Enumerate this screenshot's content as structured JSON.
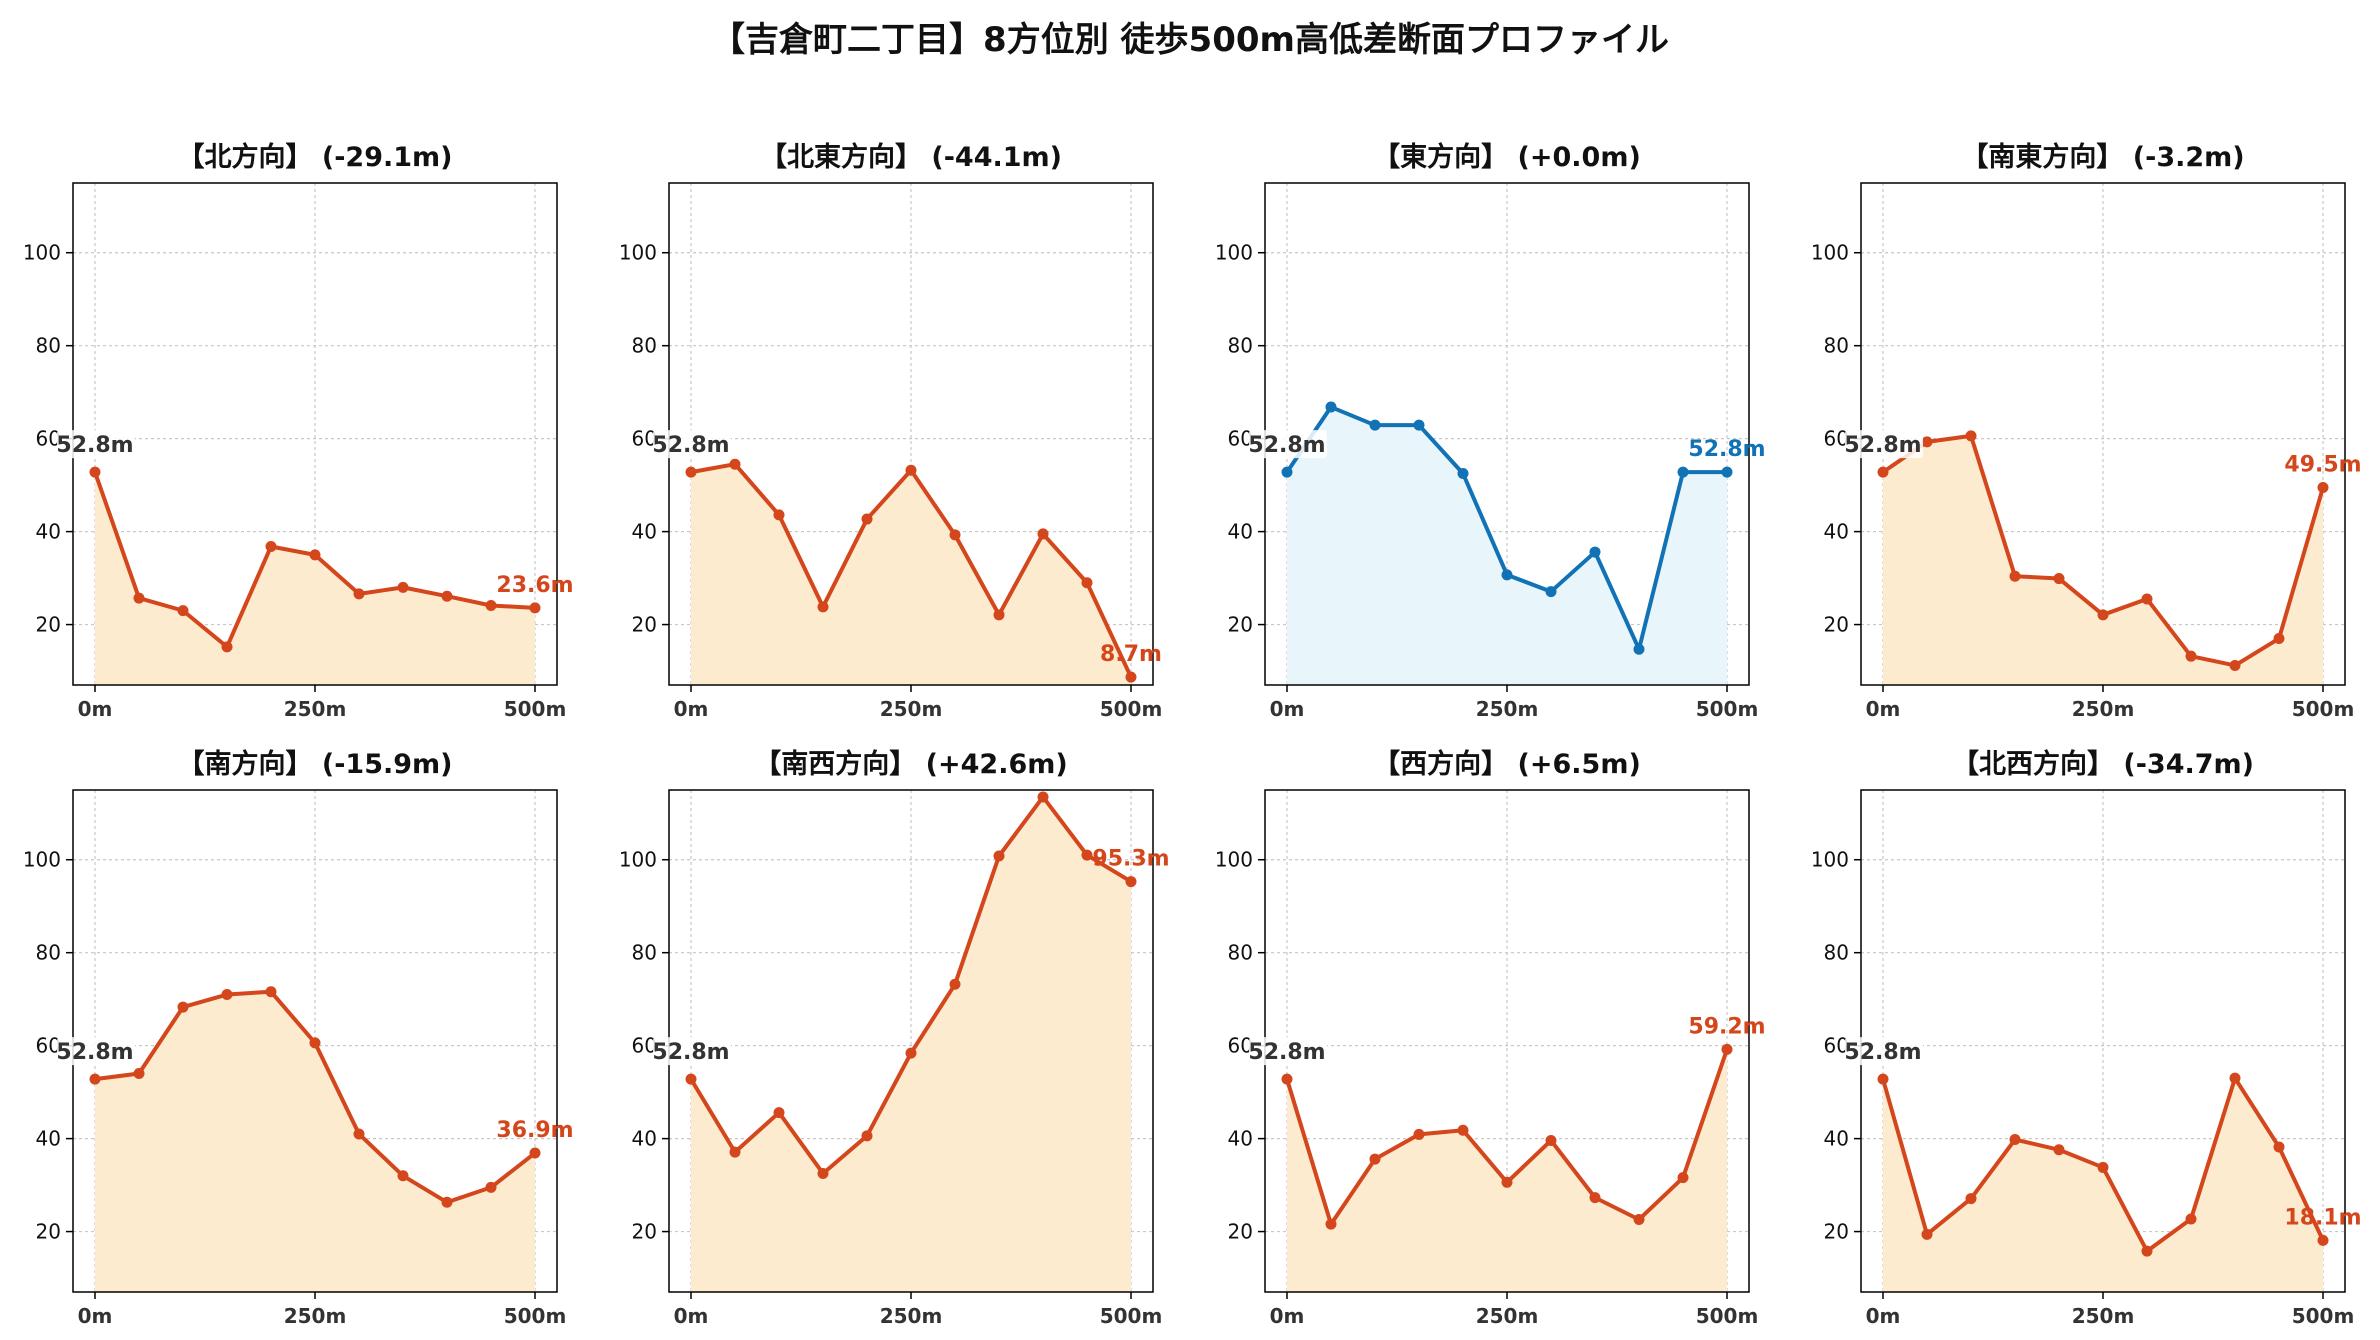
{
  "title": "【吉倉町二丁目】8方位別 徒歩500m高低差断面プロファイル",
  "colors": {
    "descent_line": "#d4461b",
    "descent_fill": "#fdebd0",
    "flat_line": "#1172b5",
    "flat_fill": "#e8f6fb",
    "start_label": "#333333",
    "grid": "#c8c8c8"
  },
  "chart_data": [
    {
      "type": "line",
      "title": "【北方向】 (-29.1m)",
      "x": [
        0,
        50,
        100,
        150,
        200,
        250,
        300,
        350,
        400,
        450,
        500
      ],
      "y": [
        52.8,
        25.7,
        23.0,
        15.2,
        36.8,
        35.0,
        26.6,
        28.0,
        26.1,
        24.1,
        23.6
      ],
      "start_label": "52.8m",
      "end_label": "23.6m",
      "style": "descent",
      "ylim": [
        7,
        115
      ],
      "yticks": [
        20,
        40,
        60,
        80,
        100
      ],
      "xticks": [
        "0m",
        "250m",
        "500m"
      ],
      "xlim": [
        -25,
        525
      ],
      "grid": true
    },
    {
      "type": "line",
      "title": "【北東方向】 (-44.1m)",
      "x": [
        0,
        50,
        100,
        150,
        200,
        250,
        300,
        350,
        400,
        450,
        500
      ],
      "y": [
        52.8,
        54.5,
        43.6,
        23.8,
        42.7,
        53.2,
        39.3,
        22.1,
        39.5,
        29.0,
        8.7
      ],
      "start_label": "52.8m",
      "end_label": "8.7m",
      "style": "descent",
      "ylim": [
        7,
        115
      ],
      "yticks": [
        20,
        40,
        60,
        80,
        100
      ],
      "xticks": [
        "0m",
        "250m",
        "500m"
      ],
      "xlim": [
        -25,
        525
      ],
      "grid": true
    },
    {
      "type": "line",
      "title": "【東方向】 (+0.0m)",
      "x": [
        0,
        50,
        100,
        150,
        200,
        250,
        300,
        350,
        400,
        450,
        500
      ],
      "y": [
        52.8,
        66.8,
        62.9,
        62.9,
        52.5,
        30.7,
        27.1,
        35.6,
        14.7,
        52.8,
        52.8
      ],
      "start_label": "52.8m",
      "end_label": "52.8m",
      "style": "flat",
      "ylim": [
        7,
        115
      ],
      "yticks": [
        20,
        40,
        60,
        80,
        100
      ],
      "xticks": [
        "0m",
        "250m",
        "500m"
      ],
      "xlim": [
        -25,
        525
      ],
      "grid": true
    },
    {
      "type": "line",
      "title": "【南東方向】 (-3.2m)",
      "x": [
        0,
        50,
        100,
        150,
        200,
        250,
        300,
        350,
        400,
        450,
        500
      ],
      "y": [
        52.8,
        59.3,
        60.6,
        30.4,
        29.9,
        22.1,
        25.5,
        13.2,
        11.2,
        17.0,
        49.5
      ],
      "start_label": "52.8m",
      "end_label": "49.5m",
      "style": "descent",
      "ylim": [
        7,
        115
      ],
      "yticks": [
        20,
        40,
        60,
        80,
        100
      ],
      "xticks": [
        "0m",
        "250m",
        "500m"
      ],
      "xlim": [
        -25,
        525
      ],
      "grid": true
    },
    {
      "type": "line",
      "title": "【南方向】 (-15.9m)",
      "x": [
        0,
        50,
        100,
        150,
        200,
        250,
        300,
        350,
        400,
        450,
        500
      ],
      "y": [
        52.8,
        54.0,
        68.3,
        71.0,
        71.6,
        60.6,
        41.0,
        32.0,
        26.3,
        29.5,
        36.9
      ],
      "start_label": "52.8m",
      "end_label": "36.9m",
      "style": "descent",
      "ylim": [
        7,
        115
      ],
      "yticks": [
        20,
        40,
        60,
        80,
        100
      ],
      "xticks": [
        "0m",
        "250m",
        "500m"
      ],
      "xlim": [
        -25,
        525
      ],
      "grid": true
    },
    {
      "type": "line",
      "title": "【南西方向】 (+42.6m)",
      "x": [
        0,
        50,
        100,
        150,
        200,
        250,
        300,
        350,
        400,
        450,
        500
      ],
      "y": [
        52.8,
        37.1,
        45.6,
        32.5,
        40.6,
        58.4,
        73.2,
        100.8,
        113.5,
        101.0,
        95.3
      ],
      "start_label": "52.8m",
      "end_label": "95.3m",
      "style": "descent",
      "ylim": [
        7,
        115
      ],
      "yticks": [
        20,
        40,
        60,
        80,
        100
      ],
      "xticks": [
        "0m",
        "250m",
        "500m"
      ],
      "xlim": [
        -25,
        525
      ],
      "grid": true
    },
    {
      "type": "line",
      "title": "【西方向】 (+6.5m)",
      "x": [
        0,
        50,
        100,
        150,
        200,
        250,
        300,
        350,
        400,
        450,
        500
      ],
      "y": [
        52.8,
        21.6,
        35.6,
        40.9,
        41.8,
        30.6,
        39.6,
        27.3,
        22.6,
        31.6,
        59.2
      ],
      "start_label": "52.8m",
      "end_label": "59.2m",
      "style": "descent",
      "ylim": [
        7,
        115
      ],
      "yticks": [
        20,
        40,
        60,
        80,
        100
      ],
      "xticks": [
        "0m",
        "250m",
        "500m"
      ],
      "xlim": [
        -25,
        525
      ],
      "grid": true
    },
    {
      "type": "line",
      "title": "【北西方向】 (-34.7m)",
      "x": [
        0,
        50,
        100,
        150,
        200,
        250,
        300,
        350,
        400,
        450,
        500
      ],
      "y": [
        52.8,
        19.4,
        27.1,
        39.8,
        37.6,
        33.8,
        15.8,
        22.7,
        53.0,
        38.2,
        18.1
      ],
      "start_label": "52.8m",
      "end_label": "18.1m",
      "style": "descent",
      "ylim": [
        7,
        115
      ],
      "yticks": [
        20,
        40,
        60,
        80,
        100
      ],
      "xticks": [
        "0m",
        "250m",
        "500m"
      ],
      "xlim": [
        -25,
        525
      ],
      "grid": true
    }
  ]
}
